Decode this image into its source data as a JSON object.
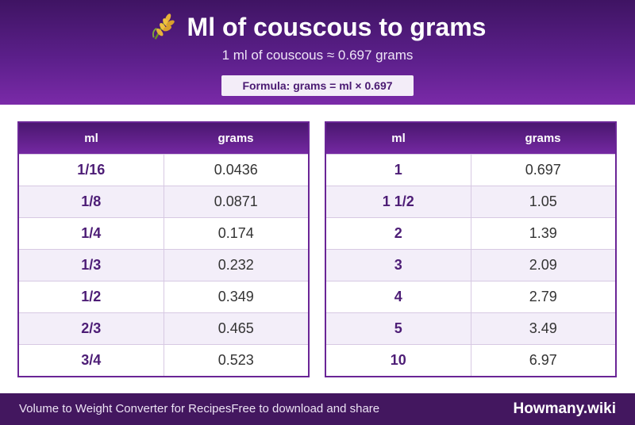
{
  "header": {
    "title": "Ml of couscous to grams",
    "title_icon": "wheat-icon",
    "subtitle": "1 ml of couscous ≈ 0.697 grams",
    "formula": "Formula: grams = ml × 0.697"
  },
  "tables": {
    "left": {
      "headers": [
        "ml",
        "grams"
      ],
      "rows": [
        {
          "ml": "1/16",
          "grams": "0.0436"
        },
        {
          "ml": "1/8",
          "grams": "0.0871"
        },
        {
          "ml": "1/4",
          "grams": "0.174"
        },
        {
          "ml": "1/3",
          "grams": "0.232"
        },
        {
          "ml": "1/2",
          "grams": "0.349"
        },
        {
          "ml": "2/3",
          "grams": "0.465"
        },
        {
          "ml": "3/4",
          "grams": "0.523"
        }
      ]
    },
    "right": {
      "headers": [
        "ml",
        "grams"
      ],
      "rows": [
        {
          "ml": "1",
          "grams": "0.697"
        },
        {
          "ml": "1 1/2",
          "grams": "1.05"
        },
        {
          "ml": "2",
          "grams": "1.39"
        },
        {
          "ml": "3",
          "grams": "2.09"
        },
        {
          "ml": "4",
          "grams": "2.79"
        },
        {
          "ml": "5",
          "grams": "3.49"
        },
        {
          "ml": "10",
          "grams": "6.97"
        }
      ]
    }
  },
  "footer": {
    "left_text": "Volume to Weight Converter for RecipesFree to download and share",
    "brand": "Howmany.wiki"
  },
  "colors": {
    "header_dark": "#3f1463",
    "header_light": "#7a2aa8",
    "accent_text": "#4d1d76",
    "footer_bg": "#43175f"
  }
}
